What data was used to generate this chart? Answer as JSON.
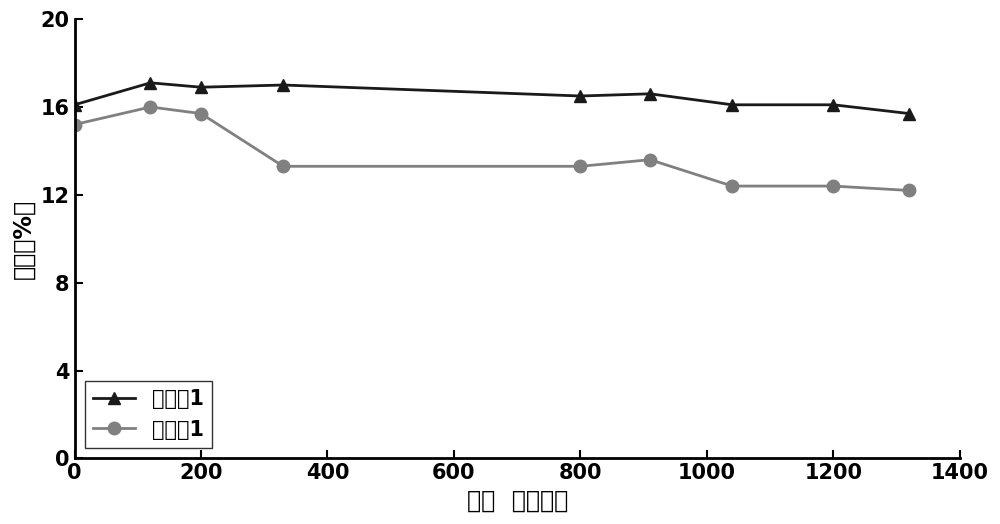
{
  "series1_label": "应用例1",
  "series2_label": "比较例1",
  "series1_x": [
    0,
    120,
    200,
    330,
    800,
    910,
    1040,
    1200,
    1320
  ],
  "series1_y": [
    16.1,
    17.1,
    16.9,
    17.0,
    16.5,
    16.6,
    16.1,
    16.1,
    15.7
  ],
  "series2_x": [
    0,
    120,
    200,
    330,
    800,
    910,
    1040,
    1200,
    1320
  ],
  "series2_y": [
    15.2,
    16.0,
    15.7,
    13.3,
    13.3,
    13.6,
    12.4,
    12.4,
    12.2
  ],
  "xlabel": "时间  （小时）",
  "ylabel": "效率（%）",
  "xlim": [
    0,
    1400
  ],
  "ylim": [
    0,
    20
  ],
  "yticks": [
    0,
    4,
    8,
    12,
    16,
    20
  ],
  "xticks": [
    0,
    200,
    400,
    600,
    800,
    1000,
    1200,
    1400
  ],
  "series1_color": "#1a1a1a",
  "series2_color": "#808080",
  "marker1": "^",
  "marker2": "o",
  "markersize": 9,
  "linewidth": 2.0,
  "legend_fontsize": 15,
  "axis_fontsize": 17,
  "tick_fontsize": 15
}
